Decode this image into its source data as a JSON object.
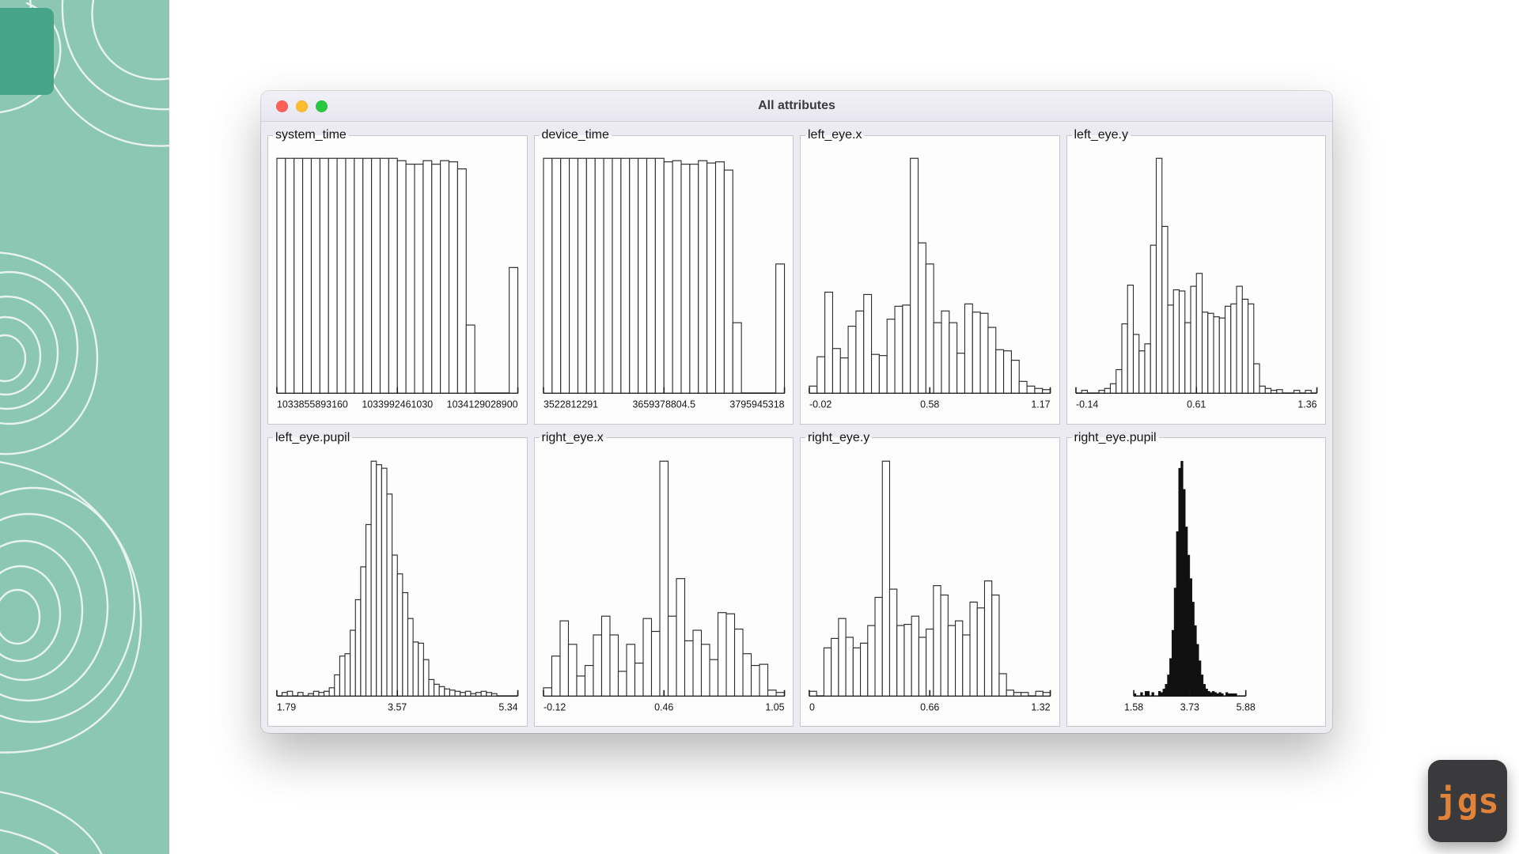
{
  "window": {
    "title": "All attributes"
  },
  "watermark": {
    "label": "jgs"
  },
  "colors": {
    "wallpaper_teal": "#8cc7b3",
    "wallpaper_teal_dark": "#46a489",
    "contour_line": "#ffffff",
    "titlebar_bg": "#edebf2",
    "close_button": "#ff5f57",
    "minimize_button": "#febc2e",
    "zoom_button": "#28c840",
    "panel_border": "#c7c6cb",
    "bar_stroke": "#2b2b2b",
    "bar_fill_outline": "#ffffff",
    "bar_fill_solid": "#111111",
    "logo_bg": "#3a3a3c",
    "logo_text": "#e0823a"
  },
  "chart_data": [
    {
      "type": "bar",
      "title": "system_time",
      "y_normalized": true,
      "ylim": [
        0,
        1
      ],
      "xticks": [
        "1033855893160",
        "1033992461030",
        "1034129028900"
      ],
      "fill": "outline",
      "axis_span": [
        0,
        1
      ],
      "bins": [
        1,
        1,
        1,
        1,
        1,
        1,
        1,
        1,
        1,
        1,
        1,
        1,
        1,
        1,
        0.99,
        0.975,
        0.975,
        0.99,
        0.975,
        0.99,
        0.985,
        0.955,
        0.29,
        0,
        0,
        0,
        0,
        0.535
      ]
    },
    {
      "type": "bar",
      "title": "device_time",
      "y_normalized": true,
      "ylim": [
        0,
        1
      ],
      "xticks": [
        "3522812291",
        "3659378804.5",
        "3795945318"
      ],
      "fill": "outline",
      "axis_span": [
        0,
        1
      ],
      "bins": [
        1,
        1,
        1,
        1,
        1,
        1,
        1,
        1,
        1,
        1,
        1,
        1,
        1,
        1,
        0.985,
        0.99,
        0.975,
        0.975,
        0.99,
        0.98,
        0.985,
        0.95,
        0.3,
        0,
        0,
        0,
        0,
        0.55
      ]
    },
    {
      "type": "bar",
      "title": "left_eye.x",
      "y_normalized": true,
      "ylim": [
        0,
        1
      ],
      "xticks": [
        "-0.02",
        "0.58",
        "1.17"
      ],
      "fill": "outline",
      "axis_span": [
        0,
        1
      ],
      "bins": [
        0.03,
        0.155,
        0.43,
        0.19,
        0.15,
        0.285,
        0.35,
        0.42,
        0.165,
        0.16,
        0.315,
        0.37,
        0.375,
        1.0,
        0.64,
        0.55,
        0.3,
        0.35,
        0.3,
        0.17,
        0.38,
        0.345,
        0.34,
        0.28,
        0.185,
        0.18,
        0.14,
        0.05,
        0.03,
        0.02,
        0.015
      ]
    },
    {
      "type": "bar",
      "title": "left_eye.y",
      "y_normalized": true,
      "ylim": [
        0,
        1
      ],
      "xticks": [
        "-0.14",
        "0.61",
        "1.36"
      ],
      "fill": "outline",
      "axis_span": [
        0,
        1
      ],
      "bins": [
        0,
        0.012,
        0,
        0,
        0.012,
        0.02,
        0.04,
        0.1,
        0.295,
        0.46,
        0.25,
        0.18,
        0.21,
        0.63,
        1.0,
        0.71,
        0.375,
        0.44,
        0.435,
        0.3,
        0.455,
        0.51,
        0.345,
        0.34,
        0.325,
        0.32,
        0.37,
        0.38,
        0.455,
        0.4,
        0.38,
        0.125,
        0.03,
        0.02,
        0.012,
        0.015,
        0,
        0,
        0.012,
        0,
        0.012,
        0
      ]
    },
    {
      "type": "bar",
      "title": "left_eye.pupil",
      "y_normalized": true,
      "ylim": [
        0,
        1
      ],
      "xticks": [
        "1.79",
        "3.57",
        "5.34"
      ],
      "fill": "outline",
      "axis_span": [
        0,
        1
      ],
      "bins": [
        0,
        0.015,
        0.02,
        0,
        0.015,
        0,
        0.01,
        0.02,
        0.015,
        0.02,
        0.035,
        0.09,
        0.17,
        0.18,
        0.28,
        0.41,
        0.55,
        0.73,
        1.0,
        0.985,
        0.97,
        0.86,
        0.6,
        0.52,
        0.44,
        0.33,
        0.23,
        0.225,
        0.155,
        0.07,
        0.05,
        0.04,
        0.03,
        0.025,
        0.02,
        0.015,
        0.02,
        0.01,
        0.015,
        0.02,
        0.015,
        0.01,
        0,
        0,
        0,
        0
      ]
    },
    {
      "type": "bar",
      "title": "right_eye.x",
      "y_normalized": true,
      "ylim": [
        0,
        1
      ],
      "xticks": [
        "-0.12",
        "0.46",
        "1.05"
      ],
      "fill": "outline",
      "axis_span": [
        0,
        1
      ],
      "bins": [
        0.035,
        0.17,
        0.32,
        0.22,
        0.085,
        0.13,
        0.26,
        0.34,
        0.26,
        0.105,
        0.22,
        0.14,
        0.33,
        0.275,
        1.0,
        0.34,
        0.5,
        0.235,
        0.28,
        0.22,
        0.155,
        0.355,
        0.35,
        0.285,
        0.18,
        0.13,
        0.135,
        0.025,
        0.015
      ]
    },
    {
      "type": "bar",
      "title": "right_eye.y",
      "y_normalized": true,
      "ylim": [
        0,
        1
      ],
      "xticks": [
        "0",
        "0.66",
        "1.32"
      ],
      "fill": "outline",
      "axis_span": [
        0,
        1
      ],
      "bins": [
        0.02,
        0,
        0.205,
        0.245,
        0.33,
        0.25,
        0.205,
        0.225,
        0.3,
        0.42,
        1.0,
        0.455,
        0.3,
        0.305,
        0.34,
        0.25,
        0.285,
        0.47,
        0.43,
        0.3,
        0.32,
        0.26,
        0.4,
        0.375,
        0.49,
        0.43,
        0.095,
        0.025,
        0.015,
        0.015,
        0,
        0.02,
        0.015
      ]
    },
    {
      "type": "bar",
      "title": "right_eye.pupil",
      "y_normalized": true,
      "ylim": [
        0,
        1
      ],
      "xticks": [
        "1.58",
        "3.73",
        "5.88"
      ],
      "fill": "solid",
      "axis_span": [
        0.24,
        0.705
      ],
      "bins": [
        0.01,
        0,
        0,
        0.015,
        0,
        0.02,
        0.02,
        0,
        0.015,
        0,
        0,
        0.02,
        0.015,
        0.03,
        0.05,
        0.09,
        0.16,
        0.28,
        0.46,
        0.7,
        0.97,
        1.0,
        0.88,
        0.72,
        0.6,
        0.5,
        0.4,
        0.3,
        0.22,
        0.15,
        0.09,
        0.05,
        0.03,
        0.02,
        0.015,
        0.02,
        0.015,
        0.01,
        0.015,
        0.01,
        0,
        0.015,
        0.01,
        0.01,
        0.01,
        0.01,
        0,
        0,
        0,
        0
      ]
    }
  ]
}
